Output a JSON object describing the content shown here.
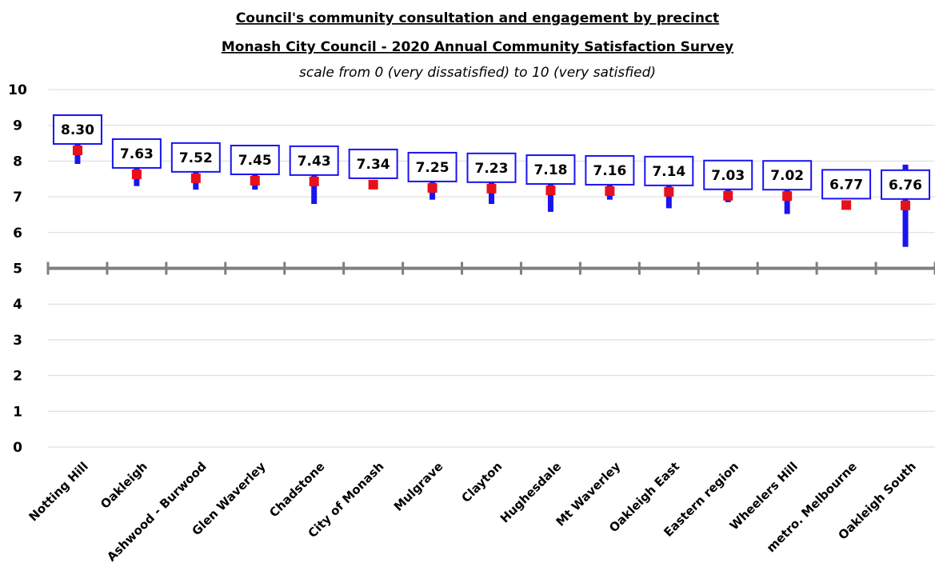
{
  "chart_data": {
    "type": "scatter",
    "title": "Council's community consultation and engagement by precinct",
    "subtitle": "Monash City Council - 2020 Annual Community Satisfaction Survey",
    "note": "scale from 0 (very dissatisfied) to 10 (very satisfied)",
    "ylim": [
      0,
      10
    ],
    "yticks": [
      0,
      1,
      2,
      3,
      4,
      5,
      6,
      7,
      8,
      9,
      10
    ],
    "reference_line": 5,
    "grid": true,
    "categories": [
      "Notting Hill",
      "Oakleigh",
      "Ashwood - Burwood",
      "Glen Waverley",
      "Chadstone",
      "City of Monash",
      "Mulgrave",
      "Clayton",
      "Hughesdale",
      "Mt Waverley",
      "Oakleigh East",
      "Eastern region",
      "Wheelers Hill",
      "metro. Melbourne",
      "Oakleigh South"
    ],
    "values": [
      8.3,
      7.63,
      7.52,
      7.45,
      7.43,
      7.34,
      7.25,
      7.23,
      7.18,
      7.16,
      7.14,
      7.03,
      7.02,
      6.77,
      6.76
    ],
    "value_labels": [
      "8.30",
      "7.63",
      "7.52",
      "7.45",
      "7.43",
      "7.34",
      "7.25",
      "7.23",
      "7.18",
      "7.16",
      "7.14",
      "7.03",
      "7.02",
      "6.77",
      "6.76"
    ],
    "ci_low": [
      7.92,
      7.3,
      7.2,
      7.2,
      6.8,
      7.34,
      6.92,
      6.8,
      6.58,
      6.92,
      6.68,
      6.85,
      6.52,
      6.77,
      5.6
    ],
    "ci_high": [
      8.65,
      7.95,
      7.82,
      7.7,
      8.0,
      7.34,
      7.55,
      7.6,
      7.78,
      7.42,
      7.58,
      7.22,
      7.5,
      6.77,
      7.9
    ],
    "colors": {
      "marker": "#e8101a",
      "interval": "#1a14f0",
      "label_border": "#1a14f0",
      "grid": "#d9d9d9",
      "reference": "#7f7f7f"
    }
  }
}
